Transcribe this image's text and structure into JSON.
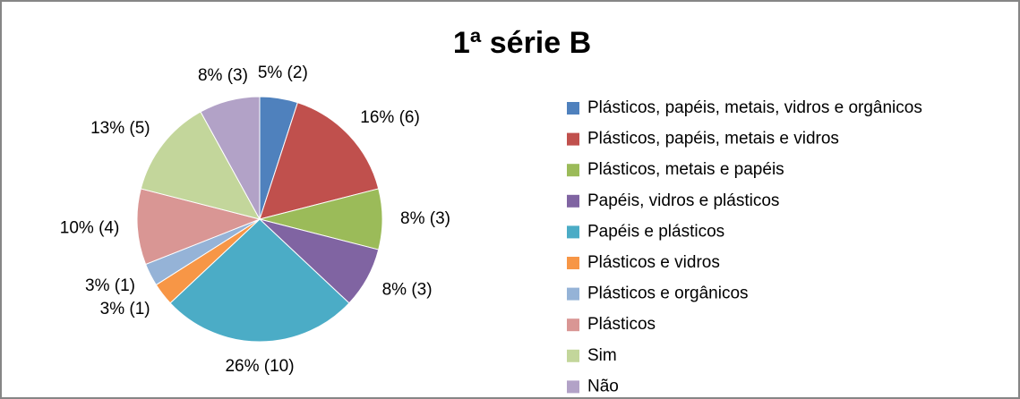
{
  "chart_data": {
    "type": "pie",
    "title": "1ª série B",
    "categories": [
      "Plásticos, papéis, metais, vidros e orgânicos",
      "Plásticos, papéis, metais e vidros",
      "Plásticos, metais e papéis",
      "Papéis, vidros e plásticos",
      "Papéis e plásticos",
      "Plásticos e vidros",
      "Plásticos e orgânicos",
      "Plásticos",
      "Sim",
      "Não"
    ],
    "values": [
      5,
      16,
      8,
      8,
      26,
      3,
      3,
      10,
      13,
      8
    ],
    "value_labels": [
      "5% (2)",
      "16% (6)",
      "8% (3)",
      "8% (3)",
      "26% (10)",
      "3% (1)",
      "3% (1)",
      "10% (4)",
      "13% (5)",
      "8% (3)"
    ],
    "colors": [
      "#4F81BD",
      "#C0504D",
      "#9BBB59",
      "#8064A2",
      "#4BACC6",
      "#F79646",
      "#95B3D7",
      "#D99694",
      "#C3D69B",
      "#B2A2C7"
    ],
    "legend": "right"
  }
}
